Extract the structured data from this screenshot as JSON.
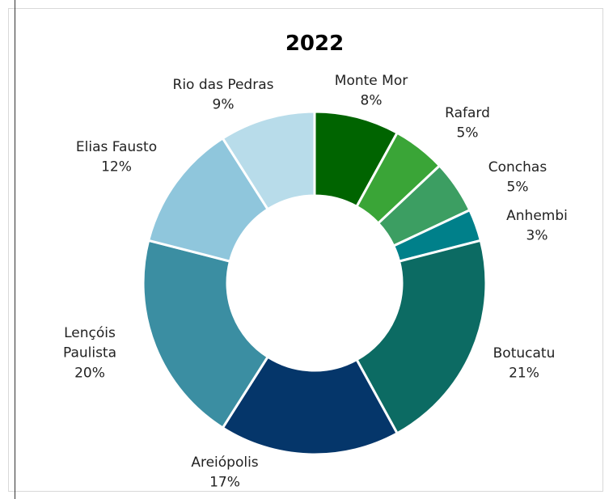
{
  "chart_data": {
    "type": "pie",
    "title": "2022",
    "donut": true,
    "series": [
      {
        "name": "Monte Mor",
        "value": 8,
        "label": "8%",
        "color": "#006400"
      },
      {
        "name": "Rafard",
        "value": 5,
        "label": "5%",
        "color": "#3aa537"
      },
      {
        "name": "Conchas",
        "value": 5,
        "label": "5%",
        "color": "#3c9e62"
      },
      {
        "name": "Anhembi",
        "value": 3,
        "label": "3%",
        "color": "#00808a"
      },
      {
        "name": "Botucatu",
        "value": 21,
        "label": "21%",
        "color": "#0c6b63"
      },
      {
        "name": "Areiópolis",
        "value": 17,
        "label": "17%",
        "color": "#05366a"
      },
      {
        "name": "Lençóis Paulista",
        "value": 20,
        "label": "20%",
        "color": "#3b8ea2",
        "name_lines": [
          "Lençóis",
          "Paulista"
        ]
      },
      {
        "name": "Elias Fausto",
        "value": 12,
        "label": "12%",
        "color": "#8fc6dc"
      },
      {
        "name": "Rio das Pedras",
        "value": 9,
        "label": "9%",
        "color": "#b8dcea"
      }
    ]
  }
}
